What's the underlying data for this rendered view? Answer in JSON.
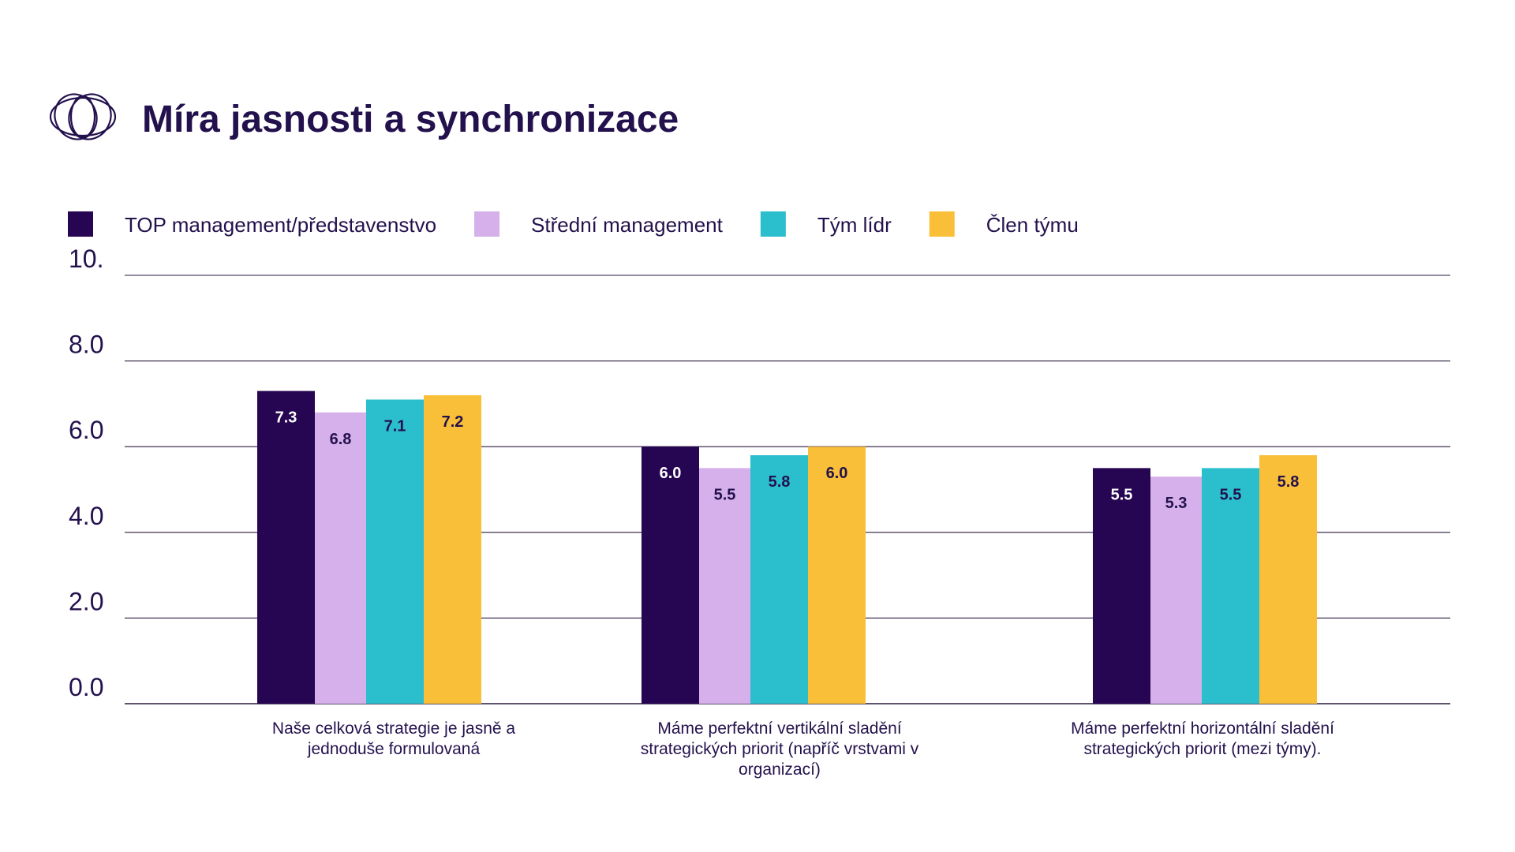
{
  "header": {
    "title": "Míra jasnosti a synchronizace",
    "logo_icon": "interlocking-circles-logo"
  },
  "colors": {
    "title": "#23114d",
    "axis_text": "#23114d",
    "grid": "#2a1a3e",
    "bar_label_light": "#ffffff",
    "bar_label_dark": "#23114d"
  },
  "chart_data": {
    "type": "bar",
    "categories": [
      [
        "Naše celková strategie je jasně a",
        "jednoduše formulovaná"
      ],
      [
        "Máme perfektní vertikální sladění",
        "strategických priorit  (napříč vrstvami v",
        "organizací)"
      ],
      [
        "Máme perfektní horizontální sladění",
        "strategických priorit (mezi týmy)."
      ]
    ],
    "series": [
      {
        "name": "TOP management/představenstvo",
        "color": "#260552",
        "label_color": "#ffffff",
        "values": [
          7.3,
          6.0,
          5.5
        ],
        "labels": [
          "7.3",
          "6.0",
          "5.5"
        ]
      },
      {
        "name": "Střední management",
        "color": "#d5b0ea",
        "label_color": "#23114d",
        "values": [
          6.8,
          5.5,
          5.3
        ],
        "labels": [
          "6.8",
          "5.5",
          "5.3"
        ]
      },
      {
        "name": "Tým lídr",
        "color": "#2bbfce",
        "label_color": "#23114d",
        "values": [
          7.1,
          5.8,
          5.5
        ],
        "labels": [
          "7.1",
          "5.8",
          "5.5"
        ]
      },
      {
        "name": "Člen týmu",
        "color": "#f9bf38",
        "label_color": "#23114d",
        "values": [
          7.2,
          6.0,
          5.8
        ],
        "labels": [
          "7.2",
          "6.0",
          "5.8"
        ]
      }
    ],
    "yticks": [
      {
        "value": 0,
        "label": "0.0"
      },
      {
        "value": 2,
        "label": "2.0"
      },
      {
        "value": 4,
        "label": "4.0"
      },
      {
        "value": 6,
        "label": "6.0"
      },
      {
        "value": 8,
        "label": "8.0"
      },
      {
        "value": 10,
        "label": "10."
      }
    ],
    "ylim": [
      0,
      10
    ],
    "grid": true,
    "legend_position": "top-left"
  }
}
